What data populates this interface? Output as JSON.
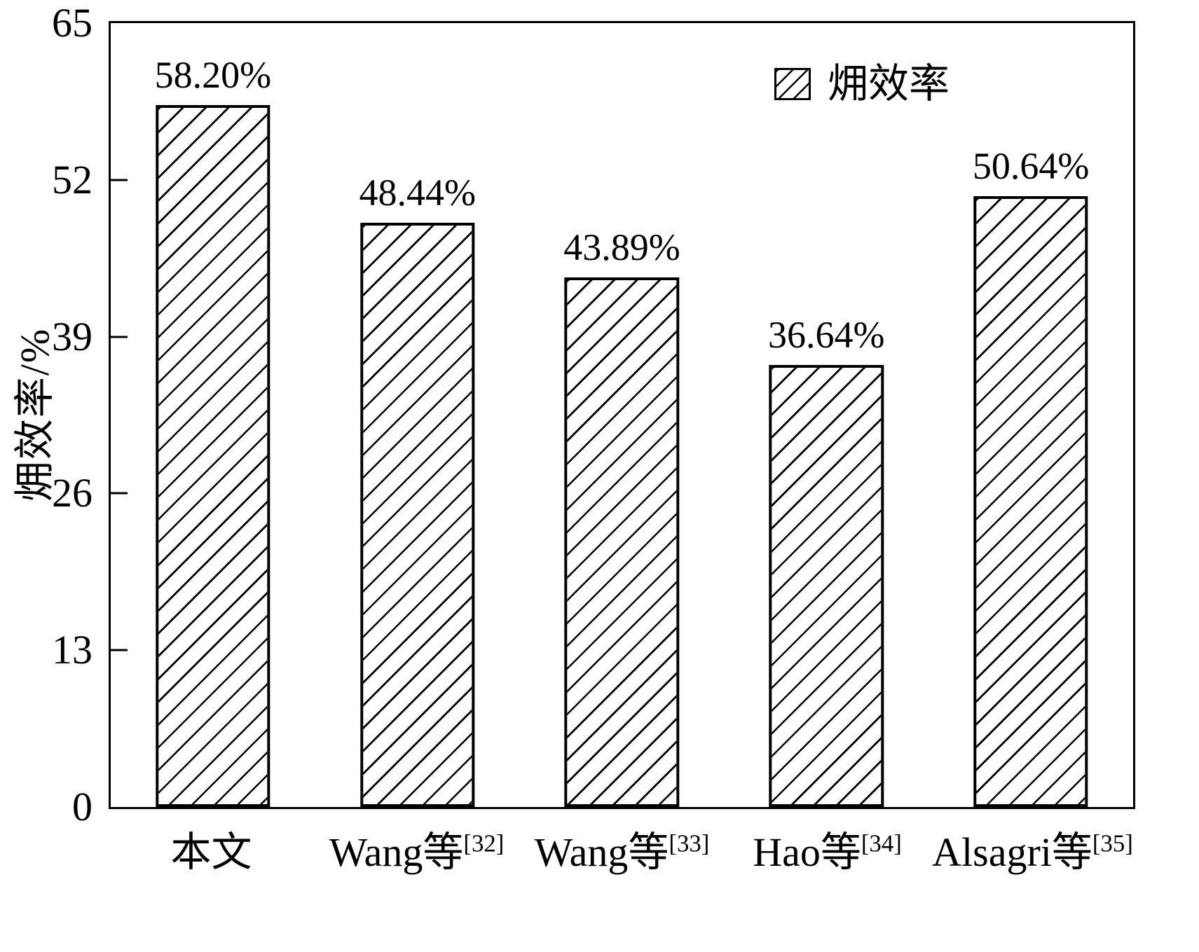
{
  "chart_data": {
    "type": "bar",
    "title": "",
    "xlabel": "",
    "ylabel": "㶲效率/%",
    "ylim": [
      0,
      65
    ],
    "yticks": [
      0,
      13,
      26,
      39,
      52,
      65
    ],
    "categories": [
      {
        "main": "本文",
        "sup": ""
      },
      {
        "main": "Wang等",
        "sup": "[32]"
      },
      {
        "main": "Wang等",
        "sup": "[33]"
      },
      {
        "main": "Hao等",
        "sup": "[34]"
      },
      {
        "main": "Alsagri等",
        "sup": "[35]"
      }
    ],
    "values": [
      58.2,
      48.44,
      43.89,
      36.64,
      50.64
    ],
    "value_labels": [
      "58.20%",
      "48.44%",
      "43.89%",
      "36.64%",
      "50.64%"
    ],
    "legend": {
      "label": "㶲效率",
      "position": "top-right"
    },
    "grid": false,
    "hatch": "/",
    "bar_fill_color": "#ffffff",
    "bar_edge_color": "#000000",
    "axis_color": "#000000",
    "background_color": "#ffffff"
  }
}
